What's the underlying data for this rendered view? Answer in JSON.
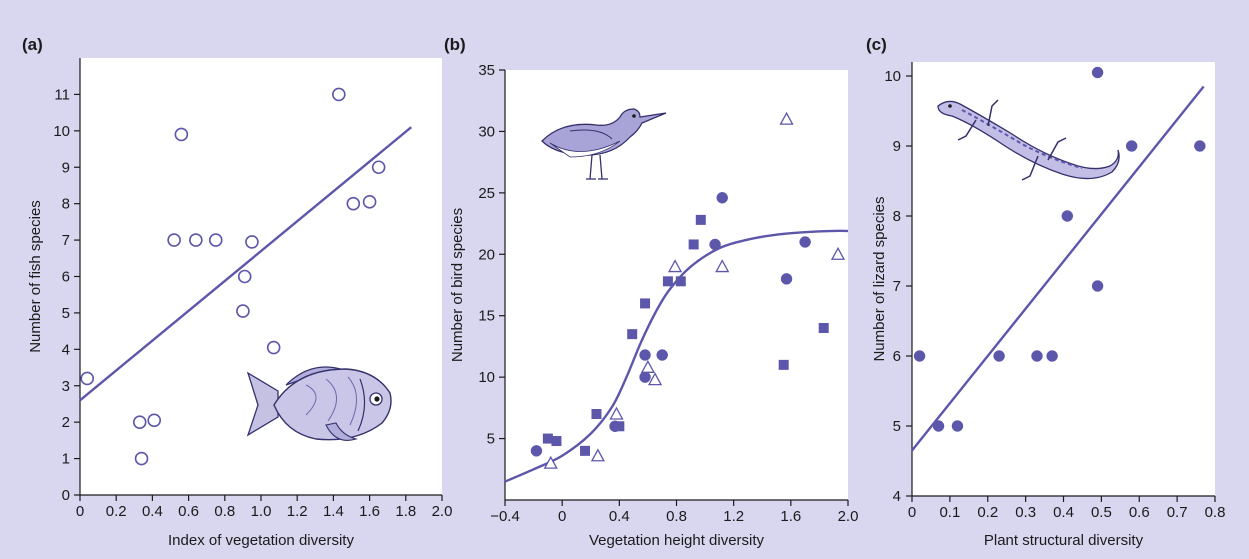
{
  "colors": {
    "background": "#d9d6ef",
    "plot": "#ffffff",
    "series": "#5d57ab",
    "text": "#1b1b1b"
  },
  "icons": [
    "fish-illustration",
    "bird-illustration",
    "lizard-illustration"
  ],
  "chart_data": [
    {
      "type": "scatter",
      "panel_label": "(a)",
      "xlabel": "Index of vegetation diversity",
      "ylabel": "Number of fish species",
      "xlim": [
        0,
        2.0
      ],
      "ylim": [
        0,
        12
      ],
      "x_ticks": [
        "0",
        "0.2",
        "0.4",
        "0.6",
        "0.8",
        "1.0",
        "1.2",
        "1.4",
        "1.6",
        "1.8",
        "2.0"
      ],
      "y_ticks": [
        "0",
        "1",
        "2",
        "3",
        "4",
        "5",
        "6",
        "7",
        "8",
        "9",
        "10",
        "11"
      ],
      "grid": false,
      "series": [
        {
          "marker": "open-circle",
          "points": [
            [
              0.04,
              3.2
            ],
            [
              0.33,
              2.0
            ],
            [
              0.41,
              2.05
            ],
            [
              0.34,
              1.0
            ],
            [
              0.52,
              7.0
            ],
            [
              0.56,
              9.9
            ],
            [
              0.64,
              7.0
            ],
            [
              0.75,
              7.0
            ],
            [
              0.9,
              5.05
            ],
            [
              0.91,
              6.0
            ],
            [
              0.95,
              6.95
            ],
            [
              1.07,
              4.05
            ],
            [
              1.43,
              11.0
            ],
            [
              1.51,
              8.0
            ],
            [
              1.6,
              8.05
            ],
            [
              1.65,
              9.0
            ]
          ]
        }
      ],
      "fit": {
        "kind": "linear",
        "x": [
          0,
          1.83
        ],
        "y": [
          2.6,
          10.1
        ]
      }
    },
    {
      "type": "scatter",
      "panel_label": "(b)",
      "xlabel": "Vegetation height diversity",
      "ylabel": "Number of bird species",
      "xlim": [
        -0.4,
        2.0
      ],
      "ylim": [
        0,
        35
      ],
      "x_ticks": [
        "−0.4",
        "0",
        "0.4",
        "0.8",
        "1.2",
        "1.6",
        "2.0"
      ],
      "y_ticks": [
        "5",
        "10",
        "15",
        "20",
        "25",
        "30",
        "35"
      ],
      "grid": false,
      "series": [
        {
          "marker": "filled-circle",
          "points": [
            [
              -0.18,
              4.0
            ],
            [
              0.37,
              6.0
            ],
            [
              0.58,
              11.8
            ],
            [
              0.58,
              10.0
            ],
            [
              0.7,
              11.8
            ],
            [
              1.07,
              20.8
            ],
            [
              1.12,
              24.6
            ],
            [
              1.57,
              18.0
            ],
            [
              1.7,
              21.0
            ]
          ]
        },
        {
          "marker": "filled-square",
          "points": [
            [
              -0.1,
              5.0
            ],
            [
              -0.04,
              4.8
            ],
            [
              0.16,
              4.0
            ],
            [
              0.24,
              7.0
            ],
            [
              0.4,
              6.0
            ],
            [
              0.49,
              13.5
            ],
            [
              0.58,
              16.0
            ],
            [
              0.74,
              17.8
            ],
            [
              0.83,
              17.8
            ],
            [
              0.92,
              20.8
            ],
            [
              0.97,
              22.8
            ],
            [
              1.55,
              11.0
            ],
            [
              1.83,
              14.0
            ]
          ]
        },
        {
          "marker": "open-triangle",
          "points": [
            [
              -0.08,
              3.0
            ],
            [
              0.25,
              3.6
            ],
            [
              0.38,
              7.0
            ],
            [
              0.6,
              10.8
            ],
            [
              0.65,
              9.8
            ],
            [
              0.79,
              19.0
            ],
            [
              1.12,
              19.0
            ],
            [
              1.57,
              31.0
            ],
            [
              1.93,
              20.0
            ]
          ]
        }
      ],
      "fit": {
        "kind": "sigmoid",
        "x": [
          -0.4,
          -0.2,
          0.0,
          0.2,
          0.35,
          0.45,
          0.55,
          0.65,
          0.75,
          0.9,
          1.1,
          1.3,
          1.5,
          1.7,
          1.9,
          2.0
        ],
        "y": [
          1.5,
          2.5,
          3.6,
          5.4,
          7.6,
          10.0,
          12.8,
          15.2,
          17.1,
          19.0,
          20.5,
          21.2,
          21.6,
          21.8,
          21.9,
          21.9
        ]
      }
    },
    {
      "type": "scatter",
      "panel_label": "(c)",
      "xlabel": "Plant structural diversity",
      "ylabel": "Number of lizard species",
      "xlim": [
        0,
        0.8
      ],
      "ylim": [
        4,
        10.2
      ],
      "x_ticks": [
        "0",
        "0.1",
        "0.2",
        "0.3",
        "0.4",
        "0.5",
        "0.6",
        "0.7",
        "0.8"
      ],
      "y_ticks": [
        "4",
        "5",
        "6",
        "7",
        "8",
        "9",
        "10"
      ],
      "grid": false,
      "series": [
        {
          "marker": "filled-circle",
          "points": [
            [
              0.02,
              6.0
            ],
            [
              0.07,
              5.0
            ],
            [
              0.12,
              5.0
            ],
            [
              0.23,
              6.0
            ],
            [
              0.33,
              6.0
            ],
            [
              0.37,
              6.0
            ],
            [
              0.41,
              8.0
            ],
            [
              0.49,
              7.0
            ],
            [
              0.49,
              10.05
            ],
            [
              0.58,
              9.0
            ],
            [
              0.76,
              9.0
            ]
          ]
        }
      ],
      "fit": {
        "kind": "linear",
        "x": [
          0,
          0.77
        ],
        "y": [
          4.65,
          9.85
        ]
      }
    }
  ]
}
